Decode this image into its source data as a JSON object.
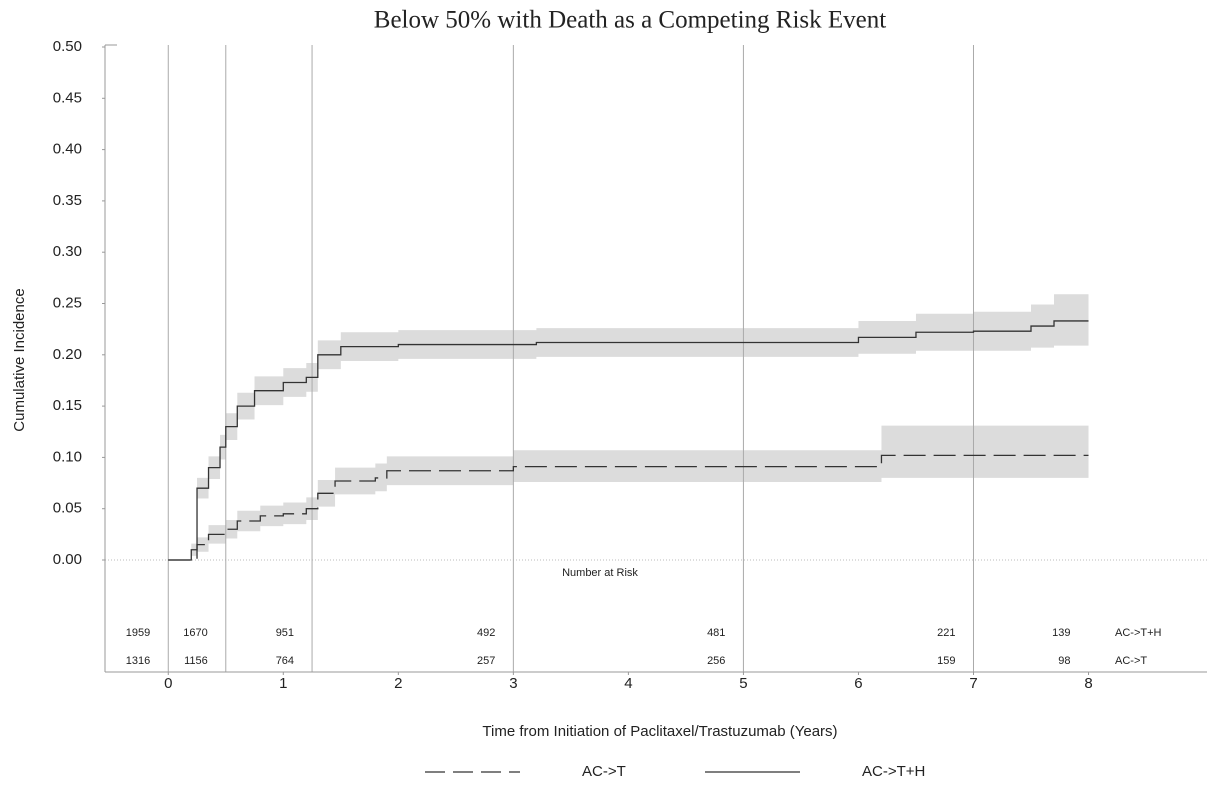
{
  "chart_data": {
    "type": "line",
    "title": "Below 50% with Death as a Competing Risk Event",
    "x_label": "Time from Initiation of Paclitaxel/Trastuzumab (Years)",
    "y_label": "Cumulative Incidence",
    "xlim": [
      -0.55,
      9.03
    ],
    "ylim": [
      0,
      0.5
    ],
    "xticks": [
      0,
      1,
      2,
      3,
      4,
      5,
      6,
      7,
      8
    ],
    "yticks": [
      {
        "value": 0,
        "label": "0.00"
      },
      0.05,
      {
        "value": 0.1,
        "label": "0.10"
      },
      0.15,
      {
        "value": 0.2,
        "label": "0.20"
      },
      0.25,
      {
        "value": 0.3,
        "label": "0.30"
      },
      0.35,
      {
        "value": 0.4,
        "label": "0.40"
      },
      0.45,
      {
        "value": 0.5,
        "label": "0.50"
      }
    ],
    "vlines": [
      0,
      0.5,
      1.25,
      3,
      5,
      7
    ],
    "band_color": "#dcdcdc",
    "series": [
      {
        "name": "AC->T",
        "style": "dashed",
        "color": "#333333",
        "x": [
          0,
          0.2,
          0.25,
          0.35,
          0.5,
          0.6,
          0.8,
          1.0,
          1.2,
          1.3,
          1.45,
          1.8,
          1.9,
          2.5,
          3.0,
          6.0,
          6.2,
          8.0
        ],
        "values": [
          0,
          0,
          0.015,
          0.025,
          0.03,
          0.038,
          0.043,
          0.045,
          0.05,
          0.065,
          0.077,
          0.08,
          0.087,
          0.087,
          0.091,
          0.091,
          0.102,
          0.102
        ],
        "lower": [
          0,
          0,
          0.008,
          0.016,
          0.021,
          0.028,
          0.033,
          0.035,
          0.039,
          0.052,
          0.064,
          0.067,
          0.073,
          0.073,
          0.076,
          0.076,
          0.08,
          0.08
        ],
        "upper": [
          0,
          0,
          0.022,
          0.034,
          0.039,
          0.048,
          0.053,
          0.056,
          0.061,
          0.078,
          0.09,
          0.094,
          0.101,
          0.101,
          0.107,
          0.107,
          0.131,
          0.131
        ]
      },
      {
        "name": "AC->T+H",
        "style": "solid",
        "color": "#333333",
        "x": [
          0,
          0.1,
          0.2,
          0.25,
          0.35,
          0.45,
          0.5,
          0.6,
          0.75,
          1.0,
          1.2,
          1.3,
          1.5,
          2.0,
          3.2,
          5.8,
          6.0,
          6.5,
          7.0,
          7.5,
          7.7,
          8.0
        ],
        "values": [
          0,
          0,
          0.01,
          0.07,
          0.09,
          0.11,
          0.13,
          0.15,
          0.165,
          0.173,
          0.178,
          0.2,
          0.208,
          0.21,
          0.212,
          0.212,
          0.217,
          0.222,
          0.223,
          0.228,
          0.233,
          0.233
        ],
        "lower": [
          0,
          0,
          0.004,
          0.06,
          0.079,
          0.098,
          0.117,
          0.137,
          0.151,
          0.159,
          0.164,
          0.186,
          0.194,
          0.196,
          0.198,
          0.198,
          0.201,
          0.204,
          0.204,
          0.207,
          0.209,
          0.209
        ],
        "upper": [
          0,
          0,
          0.016,
          0.08,
          0.101,
          0.122,
          0.143,
          0.163,
          0.179,
          0.187,
          0.192,
          0.214,
          0.222,
          0.224,
          0.226,
          0.226,
          0.233,
          0.24,
          0.242,
          0.249,
          0.259,
          0.259
        ]
      }
    ],
    "risk_table": {
      "title": "Number at Risk",
      "times": [
        0,
        0.5,
        1.25,
        3,
        5,
        7,
        8
      ],
      "rows": [
        {
          "name": "AC->T+H",
          "values": [
            1959,
            1670,
            951,
            492,
            481,
            221,
            139
          ]
        },
        {
          "name": "AC->T",
          "values": [
            1316,
            1156,
            764,
            257,
            256,
            159,
            98
          ]
        }
      ]
    }
  }
}
